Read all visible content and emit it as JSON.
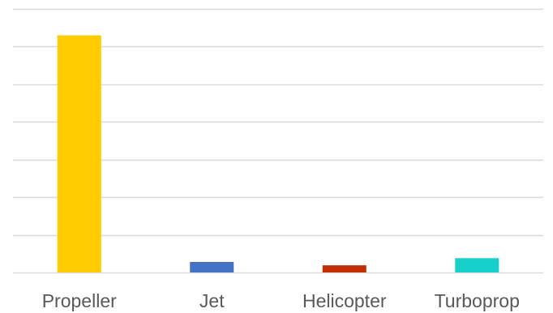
{
  "chart_data": {
    "type": "bar",
    "categories": [
      "Propeller",
      "Jet",
      "Helicopter",
      "Turboprop"
    ],
    "values": [
      63,
      2.8,
      1.9,
      3.8
    ],
    "colors": [
      "#ffcc00",
      "#4472c4",
      "#c03000",
      "#17d0cc"
    ],
    "ylim": [
      0,
      70
    ],
    "y_tick_step": 10,
    "grid": true,
    "title": "",
    "xlabel": "",
    "ylabel": "",
    "legend": "none"
  }
}
